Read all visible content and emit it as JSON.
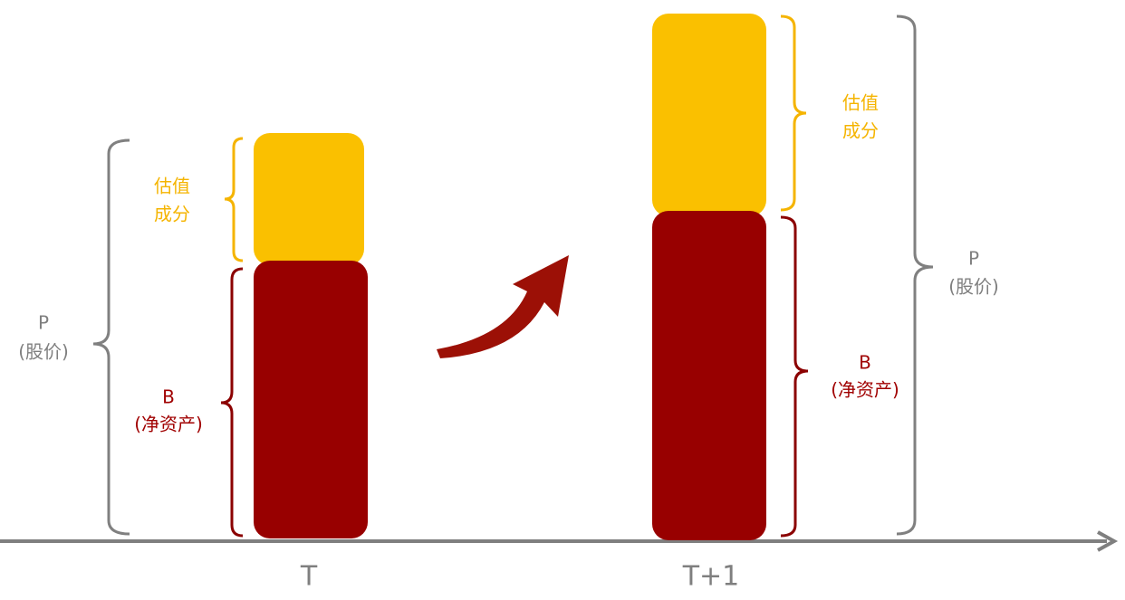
{
  "groups": [
    {
      "axis_label": "T",
      "valuation": [
        "估值",
        "成分"
      ],
      "book": [
        "B",
        "(净资产)"
      ],
      "price": [
        "P",
        "(股价)"
      ]
    },
    {
      "axis_label": "T+1",
      "valuation": [
        "估值",
        "成分"
      ],
      "book": [
        "B",
        "(净资产)"
      ],
      "price": [
        "P",
        "(股价)"
      ]
    }
  ]
}
